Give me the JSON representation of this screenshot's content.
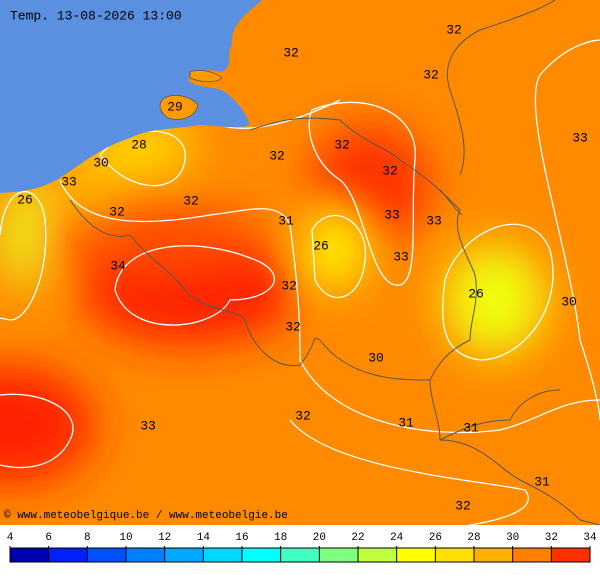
{
  "title": "Temp. 13-08-2026 13:00",
  "credit": "© www.meteobelgique.be / www.meteobelgie.be",
  "contour_labels": [
    32,
    32,
    32,
    29,
    28,
    32,
    33,
    32,
    30,
    33,
    32,
    26,
    32,
    32,
    31,
    33,
    33,
    26,
    33,
    34,
    32,
    26,
    30,
    32,
    30,
    32,
    31,
    31,
    33,
    31,
    32
  ],
  "legend": {
    "ticks": [
      4,
      6,
      8,
      10,
      12,
      14,
      16,
      18,
      20,
      22,
      24,
      26,
      28,
      30,
      32,
      34
    ],
    "colors": [
      "#0000b0",
      "#0020ff",
      "#0050ff",
      "#0080ff",
      "#00a8ff",
      "#00d8ff",
      "#00ffff",
      "#40ffc0",
      "#80ff80",
      "#c0ff40",
      "#ffff00",
      "#ffe000",
      "#ffb000",
      "#ff8000",
      "#ff3000"
    ]
  }
}
